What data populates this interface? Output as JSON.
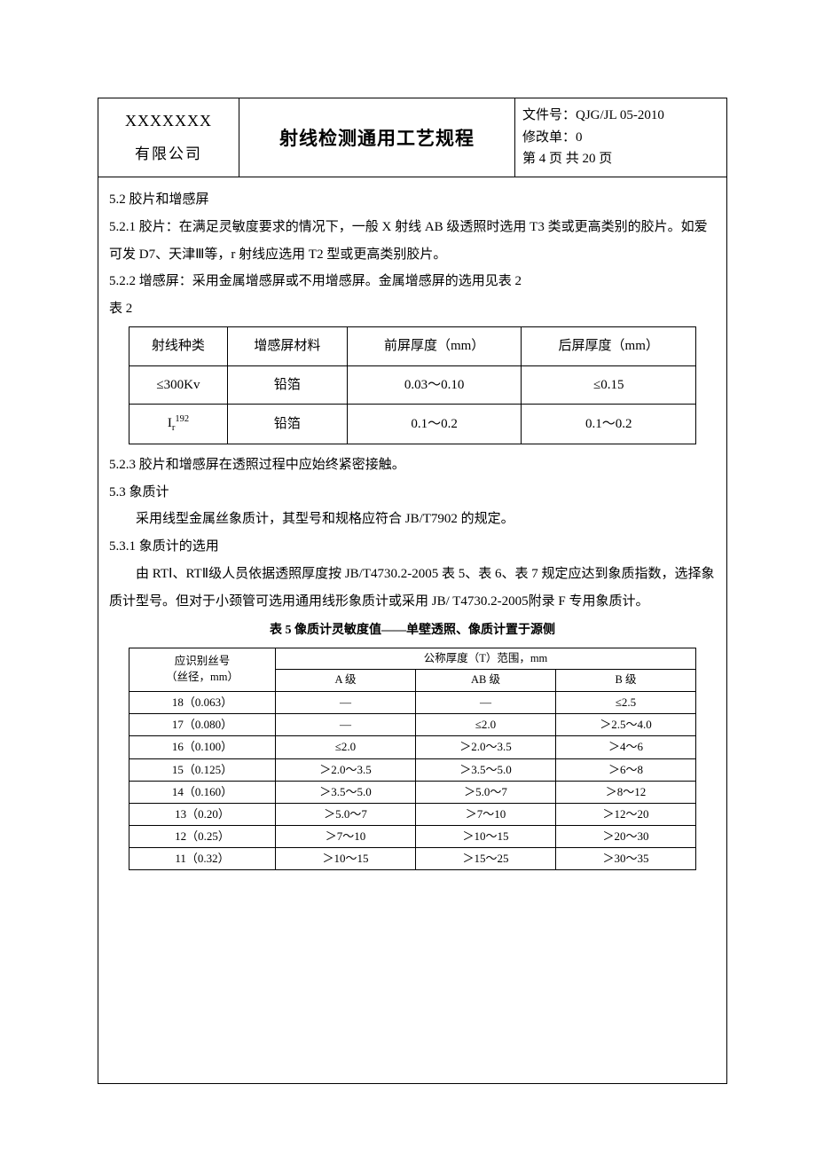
{
  "header": {
    "company_line1": "XXXXXXX",
    "company_line2": "有限公司",
    "title": "射线检测通用工艺规程",
    "doc_no_label": "文件号：",
    "doc_no": "QJG/JL 05-2010",
    "rev_label": "修改单：",
    "rev": "0",
    "page_label_a": "第 ",
    "page_no": "4",
    "page_label_b": " 页  共 ",
    "page_total": "20",
    "page_label_c": " 页"
  },
  "body": {
    "s52_h": "5.2 胶片和增感屏",
    "s521": "5.2.1 胶片：在满足灵敏度要求的情况下，一般 X 射线 AB 级透照时选用 T3 类或更高类别的胶片。如爱可发 D7、天津Ⅲ等，r 射线应选用 T2 型或更高类别胶片。",
    "s522": "5.2.2 增感屏：采用金属增感屏或不用增感屏。金属增感屏的选用见表 2",
    "t2_label": " 表 2",
    "s523": "5.2.3 胶片和增感屏在透照过程中应始终紧密接触。",
    "s53_h": "5.3 象质计",
    "s53_p1": "采用线型金属丝象质计，其型号和规格应符合 JB/T7902 的规定。",
    "s531_h": "5.3.1 象质计的选用",
    "s531_p1": "由 RTⅠ、RTⅡ级人员依据透照厚度按 JB/T4730.2-2005 表 5、表 6、表 7 规定应达到象质指数，选择象质计型号。但对于小颈管可选用通用线形象质计或采用 JB/ T4730.2-2005附录 F 专用象质计。"
  },
  "table2": {
    "columns": [
      "射线种类",
      "增感屏材料",
      "前屏厚度（mm）",
      "后屏厚度（mm）"
    ],
    "rows": [
      [
        "≤300Kv",
        "铅箔",
        "0.03～0.10",
        "≤0.15"
      ],
      [
        "I_r_192",
        "铅箔",
        "0.1～0.2",
        "0.1～0.2"
      ]
    ],
    "border_color": "#000000",
    "col_widths": [
      "160px",
      "160px",
      "160px",
      "160px"
    ]
  },
  "table5": {
    "caption": "表 5  像质计灵敏度值——单壁透照、像质计置于源侧",
    "row_header_line1": "应识别丝号",
    "row_header_line2": "（丝径，mm）",
    "span_header": "公称厚度（T）范围，mm",
    "col_headers": [
      "A 级",
      "AB 级",
      "B 级"
    ],
    "rows": [
      {
        "id": "18（0.063）",
        "a": "—",
        "ab": "—",
        "b": "≤2.5"
      },
      {
        "id": "17（0.080）",
        "a": "—",
        "ab": "≤2.0",
        "b": "＞2.5～4.0"
      },
      {
        "id": "16（0.100）",
        "a": "≤2.0",
        "ab": "＞2.0～3.5",
        "b": "＞4～6"
      },
      {
        "id": "15（0.125）",
        "a": "＞2.0～3.5",
        "ab": "＞3.5～5.0",
        "b": "＞6～8"
      },
      {
        "id": "14（0.160）",
        "a": "＞3.5～5.0",
        "ab": "＞5.0～7",
        "b": "＞8～12"
      },
      {
        "id": "13（0.20）",
        "a": "＞5.0～7",
        "ab": "＞7～10",
        "b": "＞12～20"
      },
      {
        "id": "12（0.25）",
        "a": "＞7～10",
        "ab": "＞10～15",
        "b": "＞20～30"
      },
      {
        "id": "11（0.32）",
        "a": "＞10～15",
        "ab": "＞15～25",
        "b": "＞30～35"
      }
    ],
    "border_color": "#000000"
  }
}
